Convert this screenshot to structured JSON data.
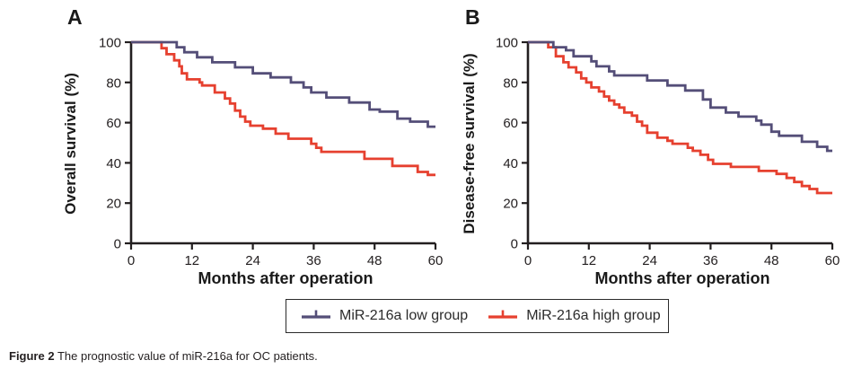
{
  "figure": {
    "caption_bold": "Figure 2",
    "caption_text": " The prognostic value of miR-216a for OC patients."
  },
  "panels": [
    {
      "label": "A",
      "ylabel": "Overall survival (%)",
      "xlabel": "Months after operation"
    },
    {
      "label": "B",
      "ylabel": "Disease-free survival (%)",
      "xlabel": "Months after operation"
    }
  ],
  "legend": {
    "position": "bottom-center",
    "items": [
      {
        "label": "MiR-216a low group",
        "color": "#544e78",
        "marker": "km-step-line"
      },
      {
        "label": "MiR-216a high group",
        "color": "#e6402f",
        "marker": "km-step-line"
      }
    ]
  },
  "colors": {
    "axis": "#231f20",
    "low_group": "#544e78",
    "high_group": "#e6402f"
  },
  "chart_data": [
    {
      "type": "line",
      "subtype": "kaplan-meier-step",
      "title": "A",
      "xlabel": "Months after operation",
      "ylabel": "Overall survival (%)",
      "xlim": [
        0,
        60
      ],
      "ylim": [
        0,
        100
      ],
      "x_ticks": [
        0,
        12,
        24,
        36,
        48,
        60
      ],
      "y_ticks": [
        0,
        20,
        40,
        60,
        80,
        100
      ],
      "grid": false,
      "series": [
        {
          "name": "MiR-216a low group",
          "color": "#544e78",
          "start": 100,
          "steps": [
            [
              9,
              97.5
            ],
            [
              10.5,
              95
            ],
            [
              13,
              92.5
            ],
            [
              16,
              90
            ],
            [
              20.5,
              87.5
            ],
            [
              24,
              84.5
            ],
            [
              27.5,
              82.5
            ],
            [
              31.5,
              80
            ],
            [
              34,
              77.5
            ],
            [
              35.5,
              75
            ],
            [
              38.5,
              72.5
            ],
            [
              43,
              70
            ],
            [
              47,
              66.5
            ],
            [
              49,
              65.5
            ],
            [
              52.5,
              62
            ],
            [
              55,
              60.5
            ],
            [
              58.5,
              58
            ]
          ]
        },
        {
          "name": "MiR-216a high group",
          "color": "#e6402f",
          "start": 100,
          "steps": [
            [
              6,
              97
            ],
            [
              7,
              94
            ],
            [
              8.5,
              91
            ],
            [
              9.5,
              88
            ],
            [
              10,
              84.5
            ],
            [
              11,
              81.5
            ],
            [
              13.5,
              80
            ],
            [
              14,
              78.5
            ],
            [
              16.5,
              75
            ],
            [
              18.5,
              72
            ],
            [
              19.5,
              69.5
            ],
            [
              20.5,
              66
            ],
            [
              21.5,
              63
            ],
            [
              22.5,
              60.5
            ],
            [
              23.5,
              58.5
            ],
            [
              26,
              57
            ],
            [
              28.5,
              54.5
            ],
            [
              31,
              52
            ],
            [
              35.5,
              49.5
            ],
            [
              36.5,
              47.5
            ],
            [
              37.5,
              45.5
            ],
            [
              46,
              42
            ],
            [
              51.5,
              38.5
            ],
            [
              56.5,
              35.5
            ],
            [
              58.5,
              34
            ]
          ]
        }
      ]
    },
    {
      "type": "line",
      "subtype": "kaplan-meier-step",
      "title": "B",
      "xlabel": "Months after operation",
      "ylabel": "Disease-free survival (%)",
      "xlim": [
        0,
        60
      ],
      "ylim": [
        0,
        100
      ],
      "x_ticks": [
        0,
        12,
        24,
        36,
        48,
        60
      ],
      "y_ticks": [
        0,
        20,
        40,
        60,
        80,
        100
      ],
      "grid": false,
      "series": [
        {
          "name": "MiR-216a low group",
          "color": "#544e78",
          "start": 100,
          "steps": [
            [
              5,
              97.5
            ],
            [
              7.5,
              96
            ],
            [
              9,
              93
            ],
            [
              12.5,
              90.5
            ],
            [
              13.5,
              88
            ],
            [
              16,
              85.5
            ],
            [
              17,
              83.5
            ],
            [
              23.5,
              81
            ],
            [
              27.5,
              78.5
            ],
            [
              31,
              76
            ],
            [
              34.5,
              71.5
            ],
            [
              36,
              67.5
            ],
            [
              39,
              65
            ],
            [
              41.5,
              63
            ],
            [
              45,
              61
            ],
            [
              46,
              59
            ],
            [
              48,
              55.5
            ],
            [
              49.5,
              53.5
            ],
            [
              54,
              50.5
            ],
            [
              57,
              48
            ],
            [
              59,
              46
            ]
          ]
        },
        {
          "name": "MiR-216a high group",
          "color": "#e6402f",
          "start": 100,
          "steps": [
            [
              4,
              97.5
            ],
            [
              5.5,
              93
            ],
            [
              7,
              90
            ],
            [
              8,
              87.5
            ],
            [
              9.5,
              85
            ],
            [
              10.5,
              82
            ],
            [
              11.5,
              80
            ],
            [
              12.5,
              77.5
            ],
            [
              14,
              75.5
            ],
            [
              15,
              73
            ],
            [
              16,
              71
            ],
            [
              17,
              69
            ],
            [
              18,
              67.5
            ],
            [
              19,
              65
            ],
            [
              20.5,
              63.5
            ],
            [
              21.5,
              60.5
            ],
            [
              22.5,
              58.5
            ],
            [
              23.5,
              55
            ],
            [
              25.5,
              52.5
            ],
            [
              27.5,
              51
            ],
            [
              28.5,
              49.5
            ],
            [
              31.5,
              47.5
            ],
            [
              32.5,
              46
            ],
            [
              34,
              44
            ],
            [
              35.5,
              41.5
            ],
            [
              36.5,
              39.5
            ],
            [
              40,
              38
            ],
            [
              45.5,
              36
            ],
            [
              49,
              34.5
            ],
            [
              51,
              32.5
            ],
            [
              52.5,
              30.5
            ],
            [
              54,
              28.5
            ],
            [
              55.5,
              27
            ],
            [
              57,
              25
            ]
          ]
        }
      ]
    }
  ]
}
